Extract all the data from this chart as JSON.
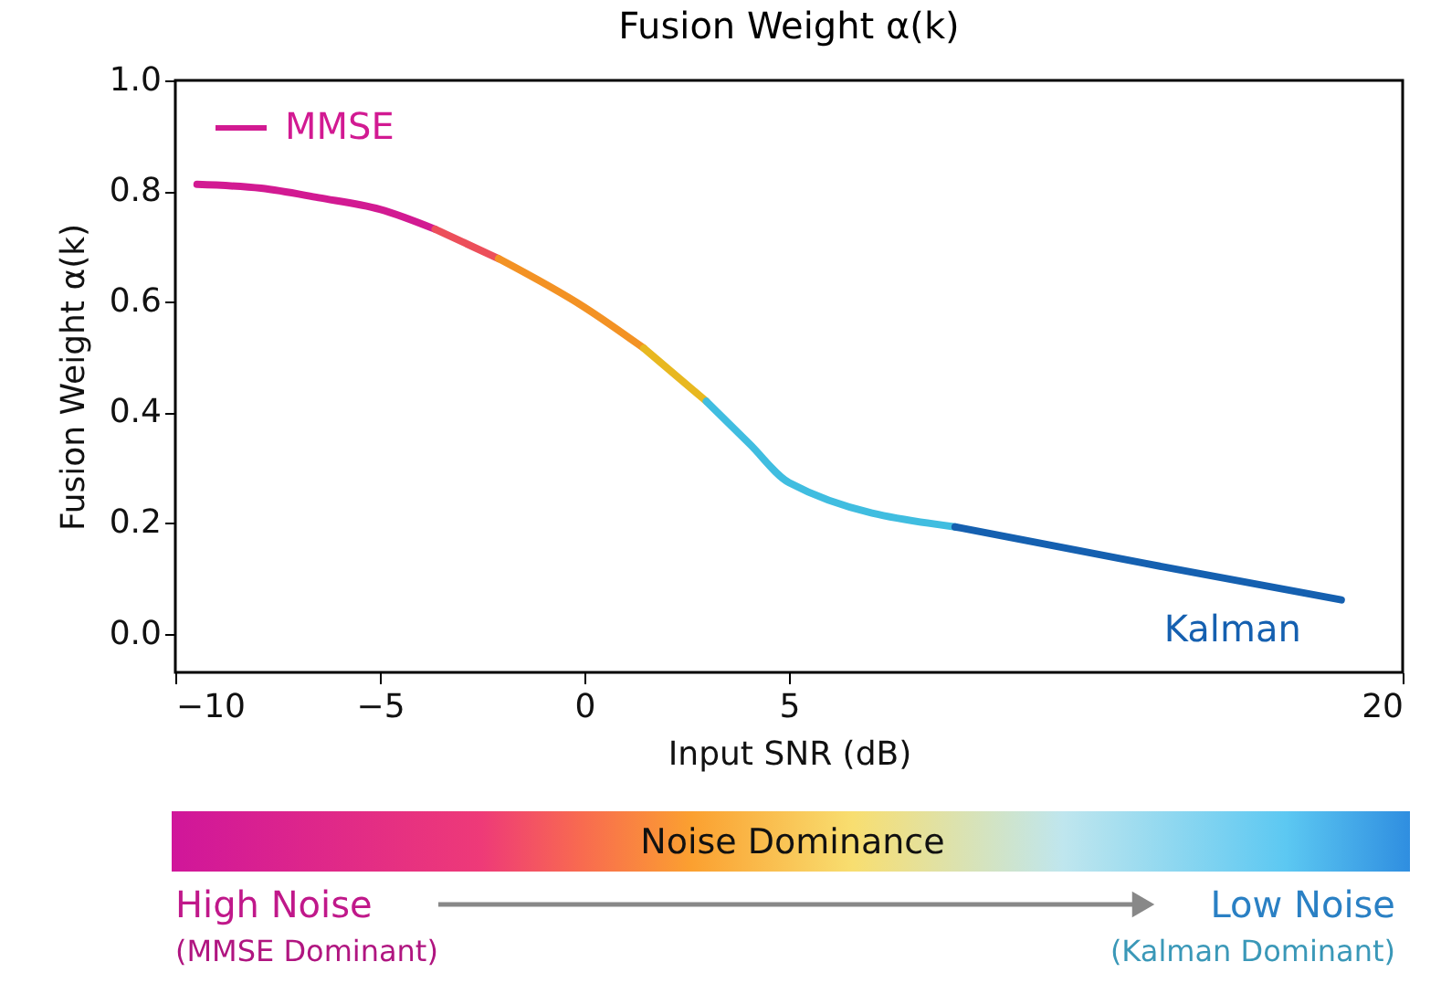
{
  "chart_data": {
    "type": "line",
    "title": "Fusion Weight α(k)",
    "xlabel": "Input SNR (dB)",
    "ylabel": "Fusion Weight α(k)",
    "xlim": [
      -10,
      20
    ],
    "xticks": [
      -10,
      -5,
      0,
      5,
      20
    ],
    "ylim": [
      -0.07,
      1.0
    ],
    "yticks": [
      {
        "value": 0,
        "label": "0.0"
      },
      0.2,
      0.4,
      0.6,
      0.8,
      {
        "value": 1,
        "label": "1.0"
      }
    ],
    "legend": "top left",
    "grid": false,
    "series": [
      {
        "name": "MMSE",
        "color": "#d21a92",
        "x": [
          -9.47,
          -7.9,
          -6.5,
          -5,
          -3.65
        ],
        "values": [
          0.812,
          0.805,
          0.788,
          0.767,
          0.731
        ]
      },
      {
        "color": "#ec4f5a",
        "x": [
          -3.65,
          -2.1
        ],
        "values": [
          0.731,
          0.678
        ]
      },
      {
        "color": "#f39224",
        "x": [
          -2.1,
          0,
          1.45
        ],
        "values": [
          0.678,
          0.59,
          0.516
        ]
      },
      {
        "color": "#e8b820",
        "x": [
          1.45,
          2.98
        ],
        "values": [
          0.516,
          0.42
        ]
      },
      {
        "color": "#40bde0",
        "x": [
          2.98,
          4.05,
          5,
          9.06
        ],
        "values": [
          0.42,
          0.342,
          0.273,
          0.193
        ]
      },
      {
        "name": "Kalman",
        "color": "#1560b0",
        "x": [
          9.06,
          13.7,
          18.5
        ],
        "values": [
          0.193,
          0.127,
          0.061
        ]
      }
    ],
    "annotations": [
      "Noise Dominance",
      "High Noise",
      "(MMSE Dominant)",
      "Low Noise",
      "(Kalman Dominant)"
    ]
  }
}
